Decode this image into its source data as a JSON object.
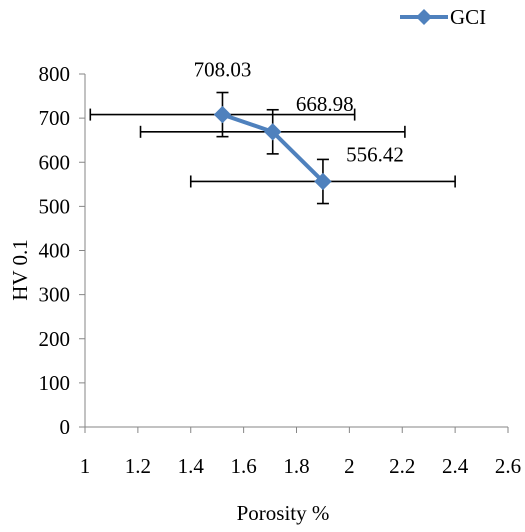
{
  "chart_data": {
    "type": "scatter",
    "title": "",
    "xlabel": "Porosity %",
    "ylabel": "HV 0.1",
    "xlim": [
      1,
      2.6
    ],
    "ylim": [
      0,
      800
    ],
    "xticks": [
      1,
      1.2,
      1.4,
      1.6,
      1.8,
      2,
      2.2,
      2.4,
      2.6
    ],
    "yticks": [
      0,
      100,
      200,
      300,
      400,
      500,
      600,
      700,
      800
    ],
    "xtick_labels": [
      "1",
      "1.2",
      "1.4",
      "1.6",
      "1.8",
      "2",
      "2.2",
      "2.4",
      "2.6"
    ],
    "ytick_labels": [
      "0",
      "100",
      "200",
      "300",
      "400",
      "500",
      "600",
      "700",
      "800"
    ],
    "grid": false,
    "legend": {
      "position": "top-right",
      "entries": [
        "GCI"
      ]
    },
    "series": [
      {
        "name": "GCI",
        "color": "#4F81BD",
        "marker": "diamond",
        "x": [
          1.52,
          1.71,
          1.9
        ],
        "y": [
          708.03,
          668.98,
          556.42
        ],
        "data_labels": [
          "708.03",
          "668.98",
          "556.42"
        ],
        "y_error": [
          50,
          50,
          50
        ],
        "x_error": [
          0.5,
          0.5,
          0.5
        ]
      }
    ]
  }
}
